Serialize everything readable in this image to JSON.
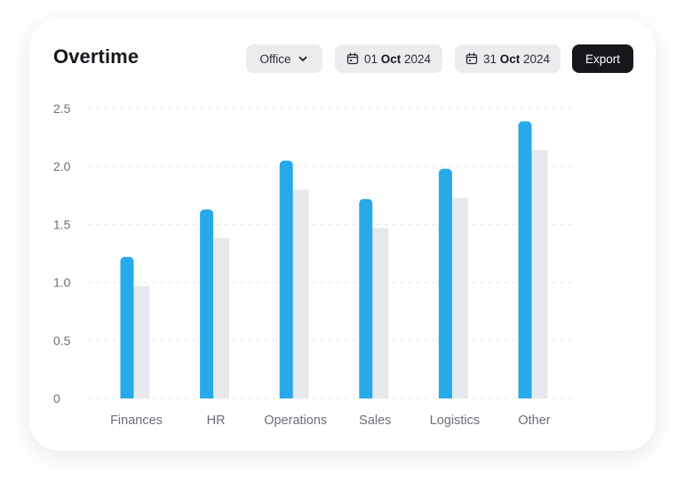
{
  "header": {
    "title": "Overtime",
    "dropdown_label": "Office",
    "date_start": {
      "day": "01",
      "month": "Oct",
      "year": "2024"
    },
    "date_end": {
      "day": "31",
      "month": "Oct",
      "year": "2024"
    },
    "export_label": "Export"
  },
  "colors": {
    "primary_series": "#27a9ea",
    "secondary_series": "#e5e9ee",
    "gridline": "#e3e5e8",
    "axis_text": "#6b6f76"
  },
  "chart_data": {
    "type": "bar",
    "categories": [
      "Finances",
      "HR",
      "Operations",
      "Sales",
      "Logistics",
      "Other"
    ],
    "series": [
      {
        "values": [
          1.22,
          1.63,
          2.05,
          1.72,
          1.98,
          2.39
        ]
      },
      {
        "values": [
          0.97,
          1.38,
          1.8,
          1.47,
          1.73,
          2.14
        ]
      }
    ],
    "yticks": [
      "0",
      "0.5",
      "1.0",
      "1.5",
      "2.0",
      "2.5"
    ],
    "ylim": [
      0,
      2.5
    ],
    "grid": true,
    "xlabel": "",
    "ylabel": ""
  }
}
